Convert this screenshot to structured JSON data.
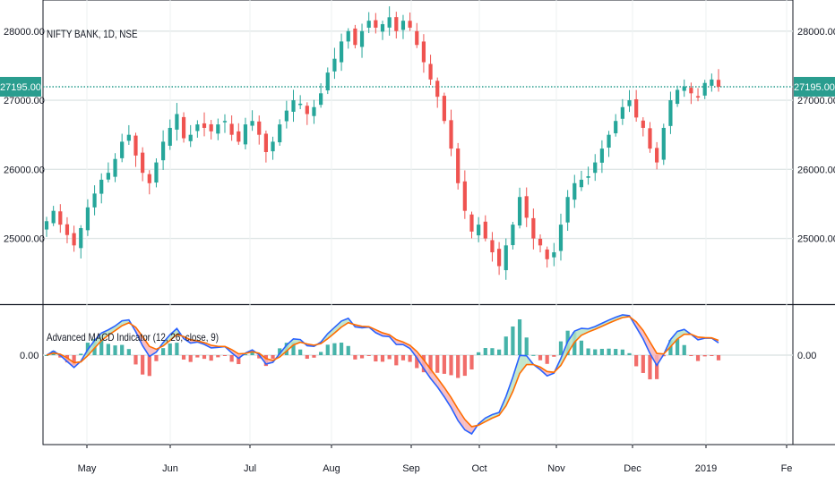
{
  "chart_data": {
    "type": "candlestick",
    "title": "NIFTY BANK, 1D, NSE",
    "current_price_label": "27195.00",
    "current_price": 27195,
    "price_axis": {
      "ticks": [
        25000,
        26000,
        27000,
        28000
      ],
      "tick_labels": [
        "25000.00",
        "26000.00",
        "27000.00",
        "28000.00"
      ],
      "range": [
        24050,
        28450
      ]
    },
    "x_axis": {
      "tick_labels": [
        "May",
        "Jun",
        "Jul",
        "Aug",
        "Sep",
        "Oct",
        "Nov",
        "Dec",
        "2019",
        "Fe"
      ]
    },
    "closes": [
      25250,
      25400,
      25200,
      25050,
      24900,
      25150,
      25450,
      25650,
      25850,
      25950,
      26150,
      26400,
      26500,
      26200,
      25950,
      25800,
      26100,
      26400,
      26600,
      26800,
      26450,
      26500,
      26650,
      26600,
      26550,
      26650,
      26700,
      26500,
      26400,
      26650,
      26700,
      26500,
      26250,
      26400,
      26650,
      26850,
      27000,
      26950,
      26800,
      26900,
      27100,
      27400,
      27600,
      27850,
      28000,
      27800,
      28000,
      28150,
      28050,
      28100,
      28200,
      28000,
      28150,
      28050,
      27800,
      27550,
      27300,
      27050,
      26700,
      26300,
      25800,
      25400,
      25100,
      25200,
      25000,
      24800,
      24600,
      24900,
      25200,
      25600,
      25300,
      25000,
      24900,
      24700,
      24800,
      25200,
      25600,
      25800,
      25850,
      25900,
      26100,
      26300,
      26500,
      26700,
      26900,
      27000,
      26750,
      26600,
      26300,
      26100,
      26600,
      27000,
      27150,
      27200,
      27100,
      27050,
      27250,
      27300,
      27195
    ],
    "macd": {
      "name": "Advanced MACD Indicator (12, 26, close, 9)",
      "zero_label": "0.00",
      "histogram_colors": {
        "positive": "#26a69a",
        "negative": "#ef5350"
      },
      "line_colors": {
        "macd": "#2962ff",
        "signal": "#ff6d00"
      }
    },
    "colors": {
      "up": "#26a69a",
      "down": "#ef5350",
      "price_line": "#2a9d8f"
    }
  }
}
